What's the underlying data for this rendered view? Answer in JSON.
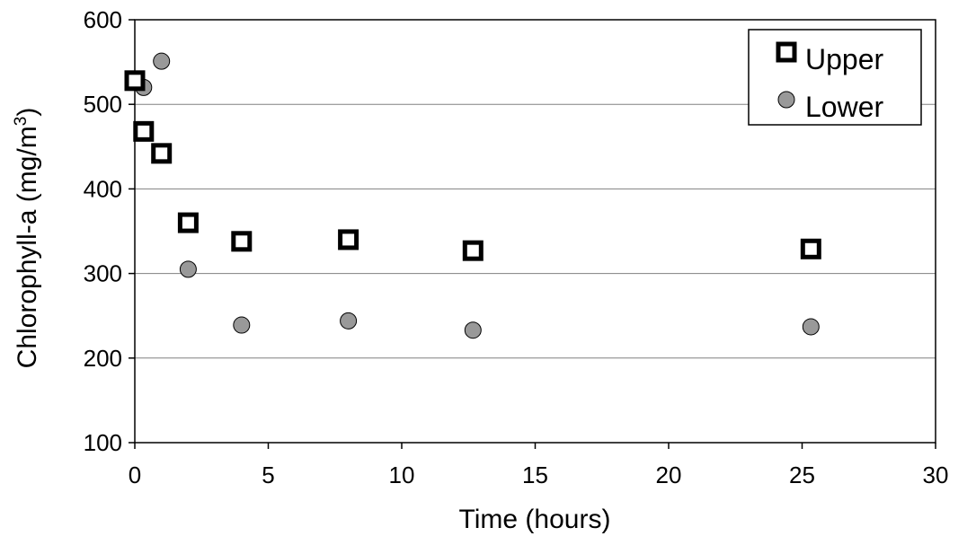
{
  "chart_data": {
    "type": "scatter",
    "xlabel": "Time (hours)",
    "ylabel": "Chlorophyll-a (mg/m",
    "ylabel_superscript": "3",
    "ylabel_close": ")",
    "xlim": [
      0,
      30
    ],
    "ylim": [
      100,
      600
    ],
    "xticks": [
      "0",
      "5",
      "10",
      "15",
      "20",
      "25",
      "30"
    ],
    "xtick_values": [
      0,
      5,
      10,
      15,
      20,
      25,
      30
    ],
    "yticks": [
      "100",
      "200",
      "300",
      "400",
      "500",
      "600"
    ],
    "ytick_values": [
      100,
      200,
      300,
      400,
      500,
      600
    ],
    "grid": "horizontal",
    "legend_position": "top-right",
    "series": [
      {
        "name": "Upper",
        "marker": "square-open",
        "color": "#000000",
        "x": [
          0,
          0.33,
          1,
          2,
          4,
          8,
          12.67,
          25.33
        ],
        "y": [
          528,
          468,
          442,
          360,
          338,
          340,
          327,
          329
        ]
      },
      {
        "name": "Lower",
        "marker": "circle-filled",
        "color": "#999999",
        "x": [
          0,
          0.33,
          1,
          2,
          4,
          8,
          12.67,
          25.33
        ],
        "y": [
          527,
          520,
          551,
          305,
          239,
          244,
          233,
          237
        ]
      }
    ]
  }
}
